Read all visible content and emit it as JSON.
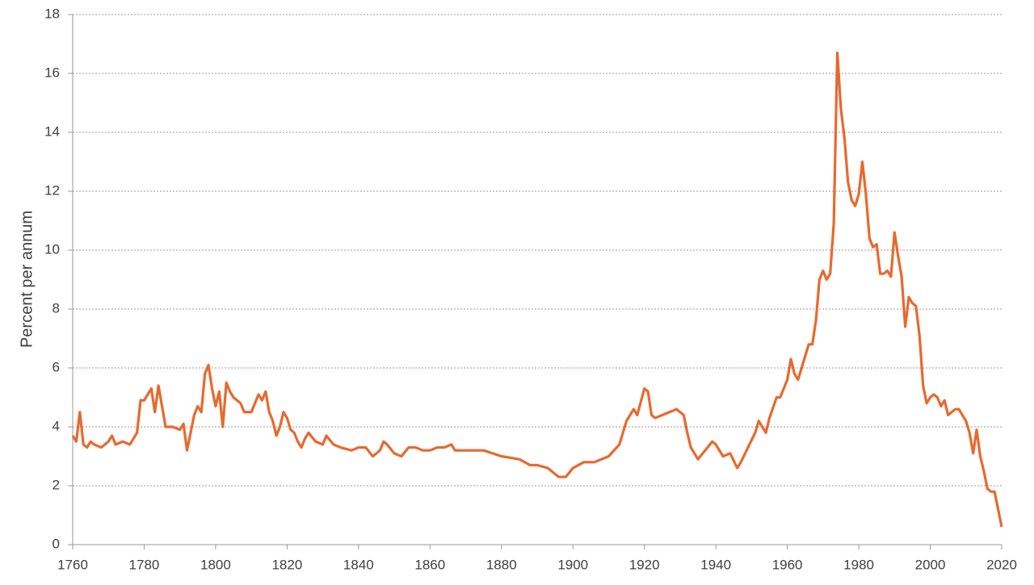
{
  "chart_data": {
    "type": "line",
    "y_label": "Percent per annum",
    "x": [
      1760,
      1761,
      1762,
      1763,
      1764,
      1765,
      1766,
      1768,
      1770,
      1771,
      1772,
      1774,
      1776,
      1778,
      1779,
      1780,
      1782,
      1783,
      1784,
      1785,
      1786,
      1788,
      1790,
      1791,
      1792,
      1793,
      1794,
      1795,
      1796,
      1797,
      1798,
      1799,
      1800,
      1801,
      1802,
      1803,
      1804,
      1805,
      1806,
      1807,
      1808,
      1810,
      1812,
      1813,
      1814,
      1815,
      1816,
      1817,
      1818,
      1819,
      1820,
      1821,
      1822,
      1823,
      1824,
      1825,
      1826,
      1828,
      1830,
      1831,
      1833,
      1835,
      1838,
      1840,
      1842,
      1844,
      1846,
      1847,
      1848,
      1850,
      1852,
      1854,
      1856,
      1858,
      1860,
      1862,
      1864,
      1866,
      1867,
      1870,
      1875,
      1880,
      1885,
      1888,
      1890,
      1893,
      1896,
      1898,
      1900,
      1903,
      1906,
      1910,
      1913,
      1915,
      1917,
      1918,
      1920,
      1921,
      1922,
      1923,
      1925,
      1927,
      1929,
      1931,
      1932,
      1933,
      1935,
      1937,
      1939,
      1940,
      1942,
      1944,
      1946,
      1947,
      1949,
      1951,
      1952,
      1954,
      1955,
      1957,
      1958,
      1960,
      1961,
      1962,
      1963,
      1965,
      1966,
      1967,
      1968,
      1969,
      1970,
      1971,
      1972,
      1973,
      1974,
      1975,
      1976,
      1977,
      1978,
      1979,
      1980,
      1981,
      1982,
      1983,
      1984,
      1985,
      1986,
      1987,
      1988,
      1989,
      1990,
      1991,
      1992,
      1993,
      1994,
      1995,
      1996,
      1997,
      1998,
      1999,
      2000,
      2001,
      2002,
      2003,
      2004,
      2005,
      2006,
      2007,
      2008,
      2009,
      2010,
      2011,
      2012,
      2013,
      2014,
      2015,
      2016,
      2017,
      2018,
      2019,
      2020
    ],
    "series": [
      {
        "color": "#e8692e",
        "values": [
          3.7,
          3.5,
          4.5,
          3.4,
          3.3,
          3.5,
          3.4,
          3.3,
          3.5,
          3.7,
          3.4,
          3.5,
          3.4,
          3.8,
          4.9,
          4.9,
          5.3,
          4.5,
          5.4,
          4.7,
          4.0,
          4.0,
          3.9,
          4.1,
          3.2,
          3.8,
          4.4,
          4.7,
          4.5,
          5.8,
          6.1,
          5.3,
          4.7,
          5.2,
          4.0,
          5.5,
          5.2,
          5.0,
          4.9,
          4.8,
          4.5,
          4.5,
          5.1,
          4.9,
          5.2,
          4.5,
          4.2,
          3.7,
          4.0,
          4.5,
          4.3,
          3.9,
          3.8,
          3.5,
          3.3,
          3.6,
          3.8,
          3.5,
          3.4,
          3.7,
          3.4,
          3.3,
          3.2,
          3.3,
          3.3,
          3.0,
          3.2,
          3.5,
          3.4,
          3.1,
          3.0,
          3.3,
          3.3,
          3.2,
          3.2,
          3.3,
          3.3,
          3.4,
          3.2,
          3.2,
          3.2,
          3.0,
          2.9,
          2.7,
          2.7,
          2.6,
          2.3,
          2.3,
          2.6,
          2.8,
          2.8,
          3.0,
          3.4,
          4.2,
          4.6,
          4.4,
          5.3,
          5.2,
          4.4,
          4.3,
          4.4,
          4.5,
          4.6,
          4.4,
          3.8,
          3.3,
          2.9,
          3.2,
          3.5,
          3.4,
          3.0,
          3.1,
          2.6,
          2.8,
          3.3,
          3.8,
          4.2,
          3.8,
          4.3,
          5.0,
          5.0,
          5.6,
          6.3,
          5.8,
          5.6,
          6.4,
          6.8,
          6.8,
          7.6,
          9.0,
          9.3,
          9.0,
          9.2,
          10.9,
          16.7,
          14.8,
          13.8,
          12.3,
          11.7,
          11.5,
          11.9,
          13.0,
          11.9,
          10.4,
          10.1,
          10.2,
          9.2,
          9.2,
          9.3,
          9.1,
          10.6,
          9.8,
          9.1,
          7.4,
          8.4,
          8.2,
          8.1,
          7.1,
          5.4,
          4.8,
          5.0,
          5.1,
          5.0,
          4.7,
          4.9,
          4.4,
          4.5,
          4.6,
          4.6,
          4.4,
          4.2,
          3.8,
          3.1,
          3.9,
          3.0,
          2.5,
          1.9,
          1.8,
          1.8,
          1.2,
          0.6
        ]
      }
    ],
    "xlim": [
      1760,
      2020
    ],
    "xticks": [
      1760,
      1780,
      1800,
      1820,
      1840,
      1860,
      1880,
      1900,
      1920,
      1940,
      1960,
      1980,
      2000,
      2020
    ],
    "ylim": [
      0,
      18
    ],
    "yticks": [
      0,
      2,
      4,
      6,
      8,
      10,
      12,
      14,
      16,
      18
    ],
    "grid": true
  }
}
